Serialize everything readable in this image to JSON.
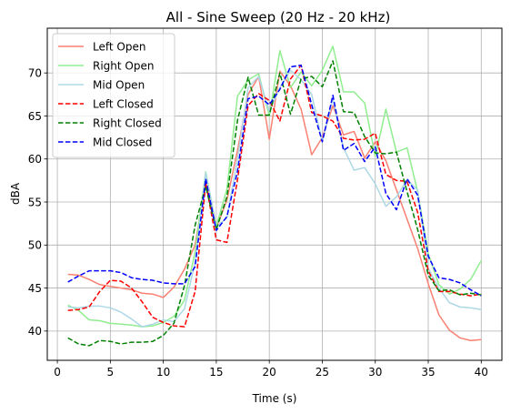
{
  "chart_data": {
    "type": "line",
    "title": "All - Sine Sweep (20 Hz - 20 kHz)",
    "xlabel": "Time (s)",
    "ylabel": "dBA",
    "xlim": [
      -0.95,
      41.95
    ],
    "ylim": [
      36.6,
      75.2
    ],
    "xticks": [
      0,
      5,
      10,
      15,
      20,
      25,
      30,
      35,
      40
    ],
    "yticks": [
      40,
      45,
      50,
      55,
      60,
      65,
      70
    ],
    "grid": true,
    "legend_position": "upper-left",
    "x": [
      1,
      2,
      3,
      4,
      5,
      6,
      7,
      8,
      9,
      10,
      11,
      12,
      13,
      14,
      15,
      16,
      17,
      18,
      19,
      20,
      21,
      22,
      23,
      24,
      25,
      26,
      27,
      28,
      29,
      30,
      31,
      32,
      33,
      34,
      35,
      36,
      37,
      38,
      39,
      40
    ],
    "series": [
      {
        "name": "Left Open",
        "color": "#fa8072",
        "dash": "solid",
        "values": [
          46.6,
          46.5,
          46.0,
          45.4,
          45.2,
          45.0,
          44.8,
          44.4,
          44.3,
          43.9,
          45.1,
          47.2,
          50.0,
          57.3,
          52.0,
          55.2,
          61.0,
          67.5,
          69.6,
          62.3,
          70.2,
          68.5,
          65.8,
          60.5,
          62.5,
          66.2,
          62.8,
          63.2,
          60.1,
          62.0,
          59.8,
          56.4,
          53.0,
          49.6,
          45.5,
          41.9,
          40.1,
          39.2,
          38.9,
          39.0
        ]
      },
      {
        "name": "Right Open",
        "color": "#90ee90",
        "dash": "solid",
        "values": [
          43.0,
          42.4,
          41.3,
          41.2,
          40.9,
          40.8,
          40.7,
          40.5,
          40.6,
          41.0,
          41.7,
          43.6,
          49.2,
          58.5,
          52.2,
          56.5,
          67.3,
          69.2,
          69.9,
          65.0,
          72.6,
          68.3,
          70.1,
          68.5,
          70.3,
          73.1,
          67.8,
          67.8,
          66.5,
          60.3,
          65.8,
          60.8,
          61.3,
          56.2,
          49.0,
          45.4,
          44.3,
          44.9,
          46.0,
          48.2
        ]
      },
      {
        "name": "Mid Open",
        "color": "#add8e6",
        "dash": "solid",
        "values": [
          42.8,
          42.7,
          42.9,
          42.9,
          42.7,
          42.2,
          41.4,
          40.5,
          40.8,
          41.3,
          41.1,
          42.6,
          48.0,
          58.4,
          52.1,
          53.2,
          60.0,
          68.3,
          69.6,
          65.5,
          68.3,
          70.3,
          69.2,
          67.5,
          62.0,
          67.0,
          61.3,
          58.7,
          59.0,
          57.1,
          54.5,
          55.6,
          57.6,
          56.4,
          47.3,
          45.0,
          43.3,
          42.8,
          42.7,
          42.5
        ]
      },
      {
        "name": "Left Closed",
        "color": "#ff0000",
        "dash": "dashed",
        "values": [
          42.4,
          42.5,
          42.8,
          44.6,
          45.9,
          45.8,
          45.0,
          43.4,
          41.6,
          41.0,
          40.6,
          40.5,
          44.6,
          57.2,
          50.6,
          50.3,
          57.6,
          66.2,
          67.6,
          66.8,
          64.4,
          69.3,
          70.9,
          65.4,
          65.0,
          64.4,
          62.4,
          62.2,
          62.3,
          63.0,
          58.2,
          57.5,
          57.4,
          53.8,
          47.0,
          44.6,
          44.6,
          44.3,
          44.1,
          44.3
        ]
      },
      {
        "name": "Right Closed",
        "color": "#008000",
        "dash": "dashed",
        "values": [
          39.2,
          38.5,
          38.3,
          38.9,
          38.8,
          38.5,
          38.7,
          38.7,
          38.8,
          39.5,
          40.9,
          45.3,
          52.3,
          56.8,
          51.8,
          55.6,
          64.5,
          69.5,
          65.1,
          65.1,
          70.0,
          65.2,
          69.3,
          69.6,
          68.4,
          71.4,
          65.5,
          65.4,
          62.6,
          60.7,
          60.6,
          60.8,
          56.2,
          51.8,
          46.5,
          44.7,
          44.8,
          44.2,
          44.4,
          44.2
        ]
      },
      {
        "name": "Mid Closed",
        "color": "#0000ff",
        "dash": "dashed",
        "values": [
          45.7,
          46.4,
          47.0,
          47.0,
          47.0,
          46.8,
          46.2,
          46.0,
          45.9,
          45.6,
          45.5,
          45.5,
          47.5,
          57.7,
          51.7,
          53.3,
          58.6,
          67.0,
          67.3,
          66.3,
          68.1,
          70.7,
          70.9,
          66.3,
          62.0,
          67.4,
          61.0,
          61.8,
          59.7,
          61.4,
          56.0,
          54.1,
          57.7,
          55.8,
          48.7,
          46.2,
          46.0,
          45.6,
          44.8,
          44.1
        ]
      }
    ]
  }
}
